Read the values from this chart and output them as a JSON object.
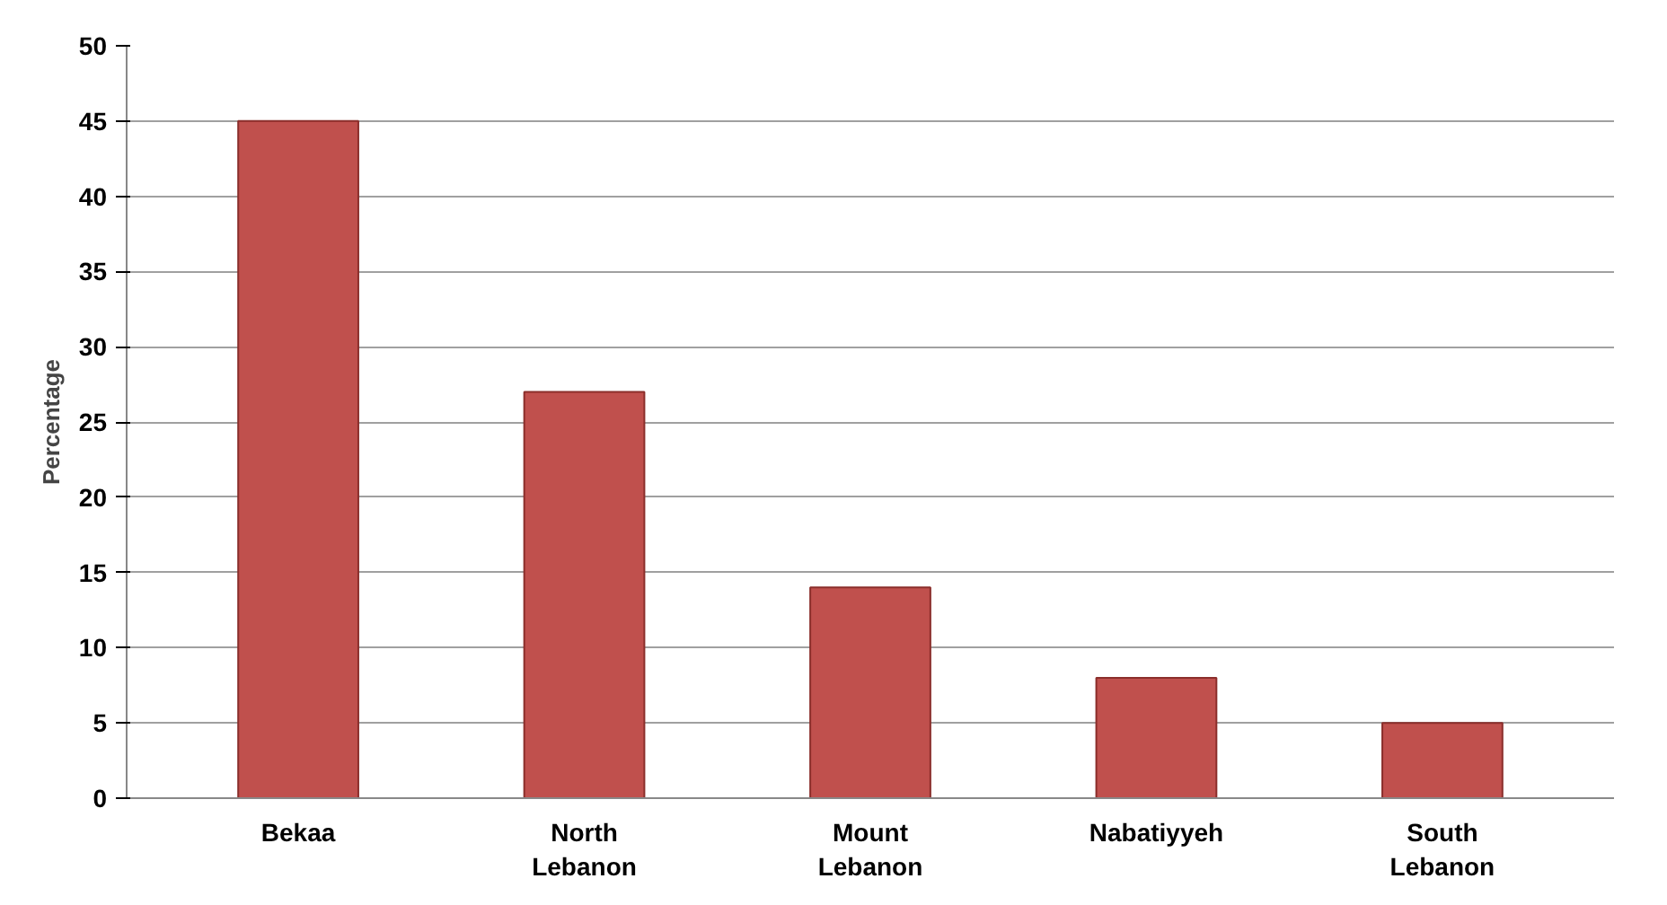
{
  "chart_data": {
    "type": "bar",
    "ylabel": "Percentage",
    "categories": [
      "Bekaa",
      "North Lebanon",
      "Mount Lebanon",
      "Nabatiyyeh",
      "South Lebanon"
    ],
    "values": [
      45,
      27,
      14,
      8,
      5
    ],
    "color": "#c0504d",
    "ylim": [
      0,
      50
    ],
    "yticks": [
      0,
      5,
      10,
      15,
      20,
      25,
      30,
      35,
      40,
      45,
      50
    ],
    "grid": "y"
  }
}
